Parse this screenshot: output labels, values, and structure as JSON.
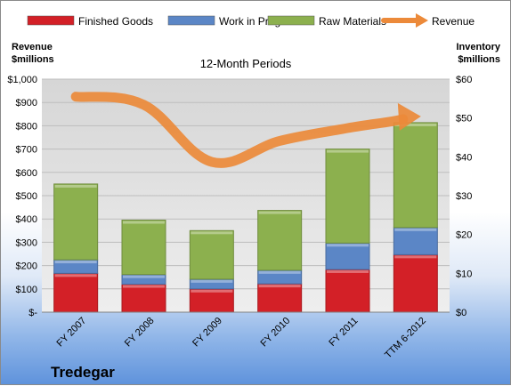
{
  "chart_data": {
    "type": "bar",
    "stacked": true,
    "title": "12-Month Periods",
    "company": "Tredegar",
    "categories": [
      "FY 2007",
      "FY 2008",
      "FY 2009",
      "FY 2010",
      "FY 2011",
      "TTM 6-2012"
    ],
    "left_axis": {
      "label_line1": "Revenue",
      "label_line2": "$millions",
      "ticks": [
        "$-",
        "$100",
        "$200",
        "$300",
        "$400",
        "$500",
        "$600",
        "$700",
        "$800",
        "$900",
        "$1,000"
      ],
      "range": [
        0,
        1000
      ]
    },
    "right_axis": {
      "label_line1": "Inventory",
      "label_line2": "$millions",
      "ticks": [
        "$0",
        "$10",
        "$20",
        "$30",
        "$40",
        "$50",
        "$60"
      ],
      "range": [
        0,
        60
      ]
    },
    "series": [
      {
        "name": "Finished Goods",
        "axis": "right",
        "color": "#d32027",
        "values": [
          10.0,
          7.2,
          6.0,
          7.3,
          11.0,
          14.8
        ]
      },
      {
        "name": "Work in Progress",
        "axis": "right",
        "color": "#5b86c6",
        "values": [
          3.5,
          2.5,
          2.5,
          3.5,
          6.8,
          7.0
        ]
      },
      {
        "name": "Raw Materials",
        "axis": "right",
        "color": "#8cb04e",
        "values": [
          19.5,
          14.0,
          12.5,
          15.4,
          24.2,
          27.0
        ]
      }
    ],
    "line_series": {
      "name": "Revenue",
      "axis": "left",
      "color": "#ec8a3a",
      "values": [
        925,
        890,
        645,
        735,
        790,
        840
      ]
    },
    "grid": true,
    "legend_position": "top"
  }
}
